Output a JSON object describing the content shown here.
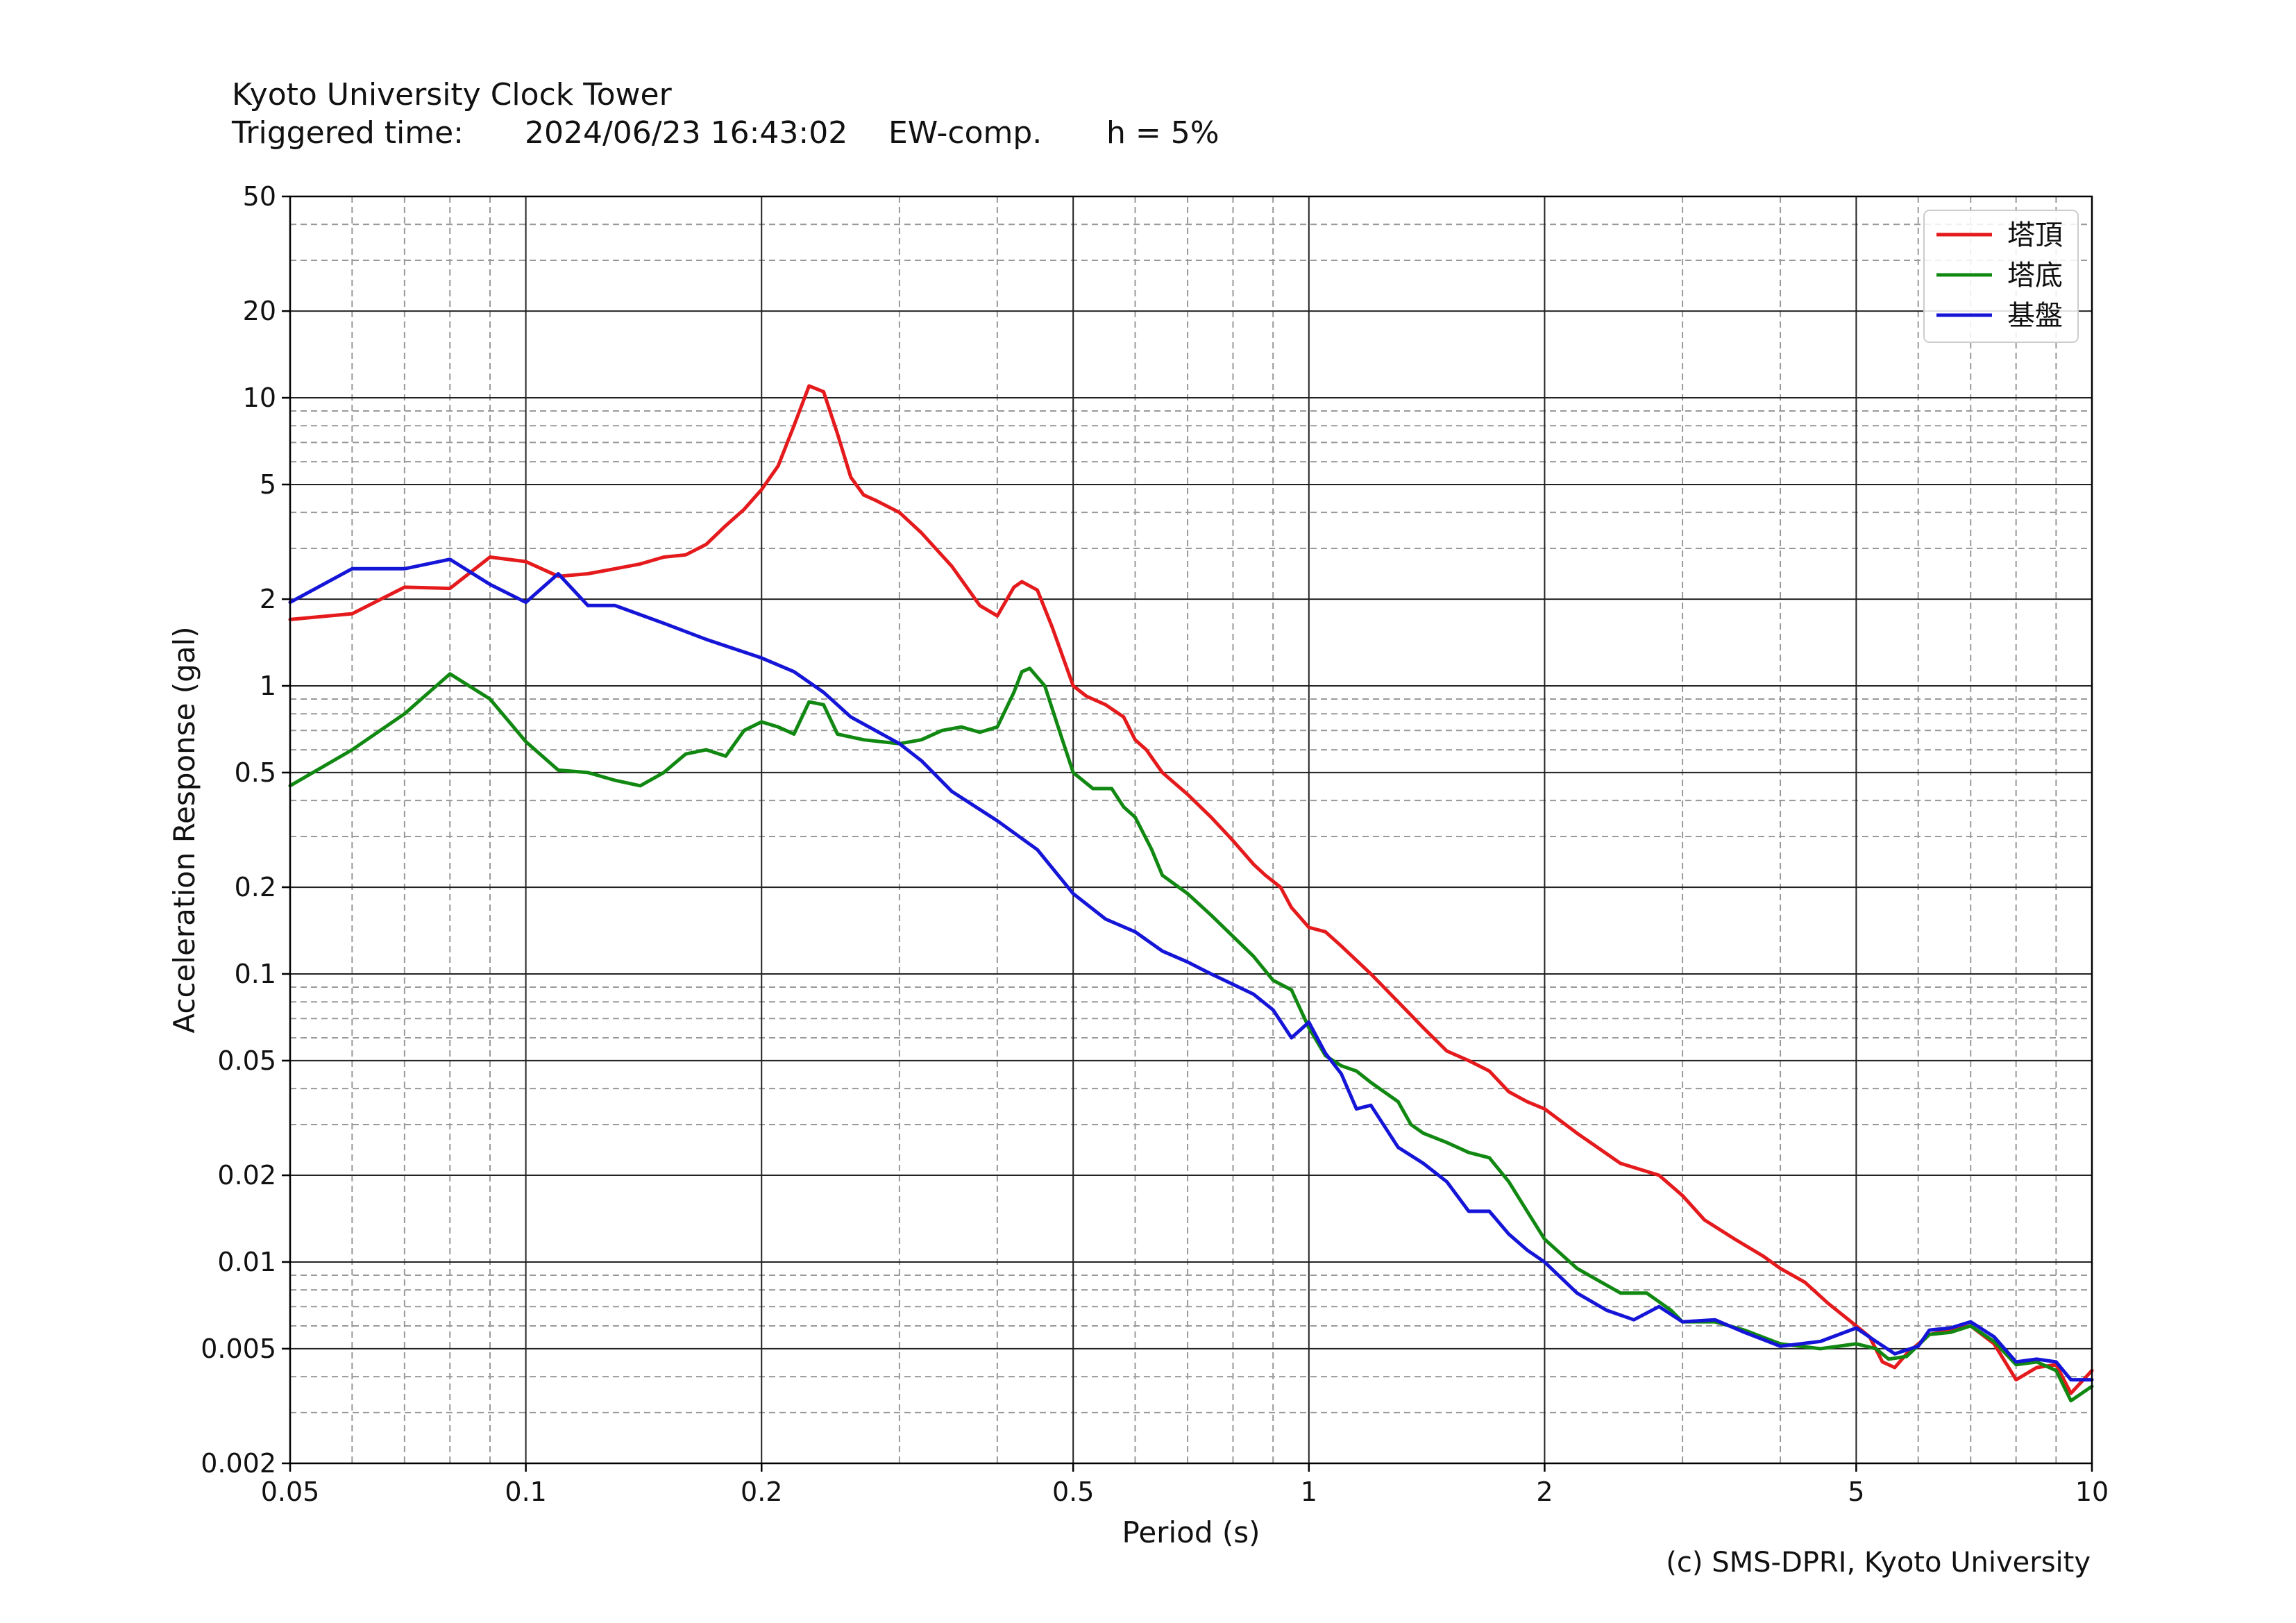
{
  "header": {
    "title": "Kyoto University Clock Tower",
    "triggered_label": "Triggered time:",
    "triggered_value": "2024/06/23 16:43:02",
    "component": "EW-comp.",
    "damping": "h = 5%"
  },
  "footer": {
    "credit": "(c) SMS-DPRI, Kyoto University"
  },
  "chart_data": {
    "type": "line",
    "title": "",
    "xlabel": "Period (s)",
    "ylabel": "Acceleration Response (gal)",
    "xscale": "log",
    "yscale": "log",
    "xlim": [
      0.05,
      10
    ],
    "ylim": [
      0.002,
      50
    ],
    "grid": true,
    "legend_position": "top-right",
    "x_ticks": [
      0.05,
      0.1,
      0.2,
      0.5,
      1,
      2,
      5,
      10
    ],
    "x_tick_labels": [
      "0.05",
      "0.1",
      "0.2",
      "0.5",
      "1",
      "2",
      "5",
      "10"
    ],
    "y_ticks": [
      0.002,
      0.005,
      0.01,
      0.02,
      0.05,
      0.1,
      0.2,
      0.5,
      1,
      2,
      5,
      10,
      20,
      50
    ],
    "y_tick_labels": [
      "0.002",
      "0.005",
      "0.01",
      "0.02",
      "0.05",
      "0.1",
      "0.2",
      "0.5",
      "1",
      "2",
      "5",
      "10",
      "20",
      "50"
    ],
    "series": [
      {
        "name": "塔頂",
        "color": "#e41a1c",
        "points": [
          [
            0.05,
            1.7
          ],
          [
            0.06,
            1.78
          ],
          [
            0.07,
            2.2
          ],
          [
            0.08,
            2.18
          ],
          [
            0.09,
            2.8
          ],
          [
            0.1,
            2.7
          ],
          [
            0.11,
            2.4
          ],
          [
            0.12,
            2.45
          ],
          [
            0.13,
            2.55
          ],
          [
            0.14,
            2.65
          ],
          [
            0.15,
            2.8
          ],
          [
            0.16,
            2.85
          ],
          [
            0.17,
            3.1
          ],
          [
            0.18,
            3.6
          ],
          [
            0.19,
            4.1
          ],
          [
            0.2,
            4.8
          ],
          [
            0.21,
            5.8
          ],
          [
            0.22,
            8.0
          ],
          [
            0.23,
            11.0
          ],
          [
            0.24,
            10.5
          ],
          [
            0.25,
            7.5
          ],
          [
            0.26,
            5.3
          ],
          [
            0.27,
            4.6
          ],
          [
            0.28,
            4.4
          ],
          [
            0.3,
            4.0
          ],
          [
            0.32,
            3.4
          ],
          [
            0.35,
            2.6
          ],
          [
            0.38,
            1.9
          ],
          [
            0.4,
            1.75
          ],
          [
            0.42,
            2.2
          ],
          [
            0.43,
            2.3
          ],
          [
            0.45,
            2.15
          ],
          [
            0.47,
            1.6
          ],
          [
            0.5,
            1.0
          ],
          [
            0.52,
            0.92
          ],
          [
            0.55,
            0.86
          ],
          [
            0.58,
            0.78
          ],
          [
            0.6,
            0.65
          ],
          [
            0.62,
            0.6
          ],
          [
            0.65,
            0.5
          ],
          [
            0.7,
            0.42
          ],
          [
            0.75,
            0.35
          ],
          [
            0.8,
            0.29
          ],
          [
            0.85,
            0.24
          ],
          [
            0.88,
            0.22
          ],
          [
            0.92,
            0.2
          ],
          [
            0.95,
            0.17
          ],
          [
            1.0,
            0.145
          ],
          [
            1.05,
            0.14
          ],
          [
            1.1,
            0.125
          ],
          [
            1.2,
            0.1
          ],
          [
            1.3,
            0.08
          ],
          [
            1.4,
            0.065
          ],
          [
            1.5,
            0.054
          ],
          [
            1.6,
            0.05
          ],
          [
            1.7,
            0.046
          ],
          [
            1.8,
            0.039
          ],
          [
            1.9,
            0.036
          ],
          [
            2.0,
            0.034
          ],
          [
            2.2,
            0.028
          ],
          [
            2.5,
            0.022
          ],
          [
            2.8,
            0.02
          ],
          [
            3.0,
            0.017
          ],
          [
            3.2,
            0.014
          ],
          [
            3.5,
            0.012
          ],
          [
            3.8,
            0.0105
          ],
          [
            4.0,
            0.0095
          ],
          [
            4.3,
            0.0085
          ],
          [
            4.6,
            0.0072
          ],
          [
            5.0,
            0.006
          ],
          [
            5.2,
            0.0055
          ],
          [
            5.4,
            0.0045
          ],
          [
            5.6,
            0.0043
          ],
          [
            5.8,
            0.0048
          ],
          [
            6.2,
            0.0056
          ],
          [
            6.6,
            0.0058
          ],
          [
            7.0,
            0.006
          ],
          [
            7.5,
            0.0052
          ],
          [
            8.0,
            0.0039
          ],
          [
            8.5,
            0.0043
          ],
          [
            9.0,
            0.0044
          ],
          [
            9.4,
            0.0035
          ],
          [
            10.0,
            0.0042
          ]
        ]
      },
      {
        "name": "塔底",
        "color": "#118811",
        "points": [
          [
            0.05,
            0.45
          ],
          [
            0.06,
            0.6
          ],
          [
            0.07,
            0.8
          ],
          [
            0.08,
            1.1
          ],
          [
            0.09,
            0.9
          ],
          [
            0.1,
            0.64
          ],
          [
            0.11,
            0.51
          ],
          [
            0.12,
            0.5
          ],
          [
            0.13,
            0.47
          ],
          [
            0.14,
            0.45
          ],
          [
            0.15,
            0.5
          ],
          [
            0.16,
            0.58
          ],
          [
            0.17,
            0.6
          ],
          [
            0.18,
            0.57
          ],
          [
            0.19,
            0.7
          ],
          [
            0.2,
            0.75
          ],
          [
            0.21,
            0.72
          ],
          [
            0.22,
            0.68
          ],
          [
            0.23,
            0.88
          ],
          [
            0.24,
            0.86
          ],
          [
            0.25,
            0.68
          ],
          [
            0.27,
            0.65
          ],
          [
            0.3,
            0.63
          ],
          [
            0.32,
            0.65
          ],
          [
            0.34,
            0.7
          ],
          [
            0.36,
            0.72
          ],
          [
            0.38,
            0.69
          ],
          [
            0.4,
            0.72
          ],
          [
            0.42,
            0.95
          ],
          [
            0.43,
            1.12
          ],
          [
            0.44,
            1.15
          ],
          [
            0.46,
            1.0
          ],
          [
            0.48,
            0.7
          ],
          [
            0.5,
            0.5
          ],
          [
            0.53,
            0.44
          ],
          [
            0.56,
            0.44
          ],
          [
            0.58,
            0.38
          ],
          [
            0.6,
            0.35
          ],
          [
            0.63,
            0.27
          ],
          [
            0.65,
            0.22
          ],
          [
            0.7,
            0.19
          ],
          [
            0.75,
            0.16
          ],
          [
            0.8,
            0.135
          ],
          [
            0.85,
            0.115
          ],
          [
            0.9,
            0.095
          ],
          [
            0.95,
            0.088
          ],
          [
            1.0,
            0.065
          ],
          [
            1.05,
            0.052
          ],
          [
            1.1,
            0.048
          ],
          [
            1.15,
            0.046
          ],
          [
            1.2,
            0.042
          ],
          [
            1.3,
            0.036
          ],
          [
            1.35,
            0.03
          ],
          [
            1.4,
            0.028
          ],
          [
            1.5,
            0.026
          ],
          [
            1.6,
            0.024
          ],
          [
            1.7,
            0.023
          ],
          [
            1.8,
            0.019
          ],
          [
            1.9,
            0.015
          ],
          [
            2.0,
            0.012
          ],
          [
            2.2,
            0.0095
          ],
          [
            2.5,
            0.0078
          ],
          [
            2.7,
            0.0078
          ],
          [
            2.9,
            0.0068
          ],
          [
            3.0,
            0.0062
          ],
          [
            3.3,
            0.0062
          ],
          [
            3.6,
            0.0058
          ],
          [
            4.0,
            0.0052
          ],
          [
            4.5,
            0.005
          ],
          [
            5.0,
            0.0052
          ],
          [
            5.3,
            0.005
          ],
          [
            5.5,
            0.0046
          ],
          [
            5.8,
            0.0047
          ],
          [
            6.2,
            0.0056
          ],
          [
            6.6,
            0.0057
          ],
          [
            7.0,
            0.006
          ],
          [
            7.5,
            0.0053
          ],
          [
            8.0,
            0.0044
          ],
          [
            8.5,
            0.0045
          ],
          [
            9.0,
            0.0042
          ],
          [
            9.4,
            0.0033
          ],
          [
            10.0,
            0.0037
          ]
        ]
      },
      {
        "name": "基盤",
        "color": "#1515d8",
        "points": [
          [
            0.05,
            1.95
          ],
          [
            0.06,
            2.55
          ],
          [
            0.07,
            2.55
          ],
          [
            0.08,
            2.75
          ],
          [
            0.09,
            2.25
          ],
          [
            0.1,
            1.95
          ],
          [
            0.11,
            2.45
          ],
          [
            0.12,
            1.9
          ],
          [
            0.13,
            1.9
          ],
          [
            0.15,
            1.65
          ],
          [
            0.17,
            1.45
          ],
          [
            0.2,
            1.25
          ],
          [
            0.22,
            1.12
          ],
          [
            0.24,
            0.95
          ],
          [
            0.26,
            0.78
          ],
          [
            0.3,
            0.63
          ],
          [
            0.32,
            0.55
          ],
          [
            0.35,
            0.43
          ],
          [
            0.4,
            0.34
          ],
          [
            0.45,
            0.27
          ],
          [
            0.5,
            0.19
          ],
          [
            0.55,
            0.155
          ],
          [
            0.6,
            0.14
          ],
          [
            0.65,
            0.12
          ],
          [
            0.7,
            0.11
          ],
          [
            0.75,
            0.1
          ],
          [
            0.8,
            0.092
          ],
          [
            0.85,
            0.085
          ],
          [
            0.9,
            0.075
          ],
          [
            0.95,
            0.06
          ],
          [
            1.0,
            0.068
          ],
          [
            1.05,
            0.053
          ],
          [
            1.1,
            0.045
          ],
          [
            1.15,
            0.034
          ],
          [
            1.2,
            0.035
          ],
          [
            1.3,
            0.025
          ],
          [
            1.4,
            0.022
          ],
          [
            1.5,
            0.019
          ],
          [
            1.6,
            0.015
          ],
          [
            1.7,
            0.015
          ],
          [
            1.8,
            0.0125
          ],
          [
            1.9,
            0.011
          ],
          [
            2.0,
            0.01
          ],
          [
            2.2,
            0.0078
          ],
          [
            2.4,
            0.0068
          ],
          [
            2.6,
            0.0063
          ],
          [
            2.8,
            0.007
          ],
          [
            3.0,
            0.0062
          ],
          [
            3.3,
            0.0063
          ],
          [
            3.6,
            0.0057
          ],
          [
            4.0,
            0.0051
          ],
          [
            4.5,
            0.0053
          ],
          [
            5.0,
            0.0059
          ],
          [
            5.3,
            0.0053
          ],
          [
            5.6,
            0.0048
          ],
          [
            6.0,
            0.0051
          ],
          [
            6.2,
            0.0058
          ],
          [
            6.6,
            0.0059
          ],
          [
            7.0,
            0.0062
          ],
          [
            7.5,
            0.0055
          ],
          [
            8.0,
            0.0045
          ],
          [
            8.5,
            0.0046
          ],
          [
            9.0,
            0.0045
          ],
          [
            9.4,
            0.0039
          ],
          [
            10.0,
            0.0039
          ]
        ]
      }
    ]
  }
}
